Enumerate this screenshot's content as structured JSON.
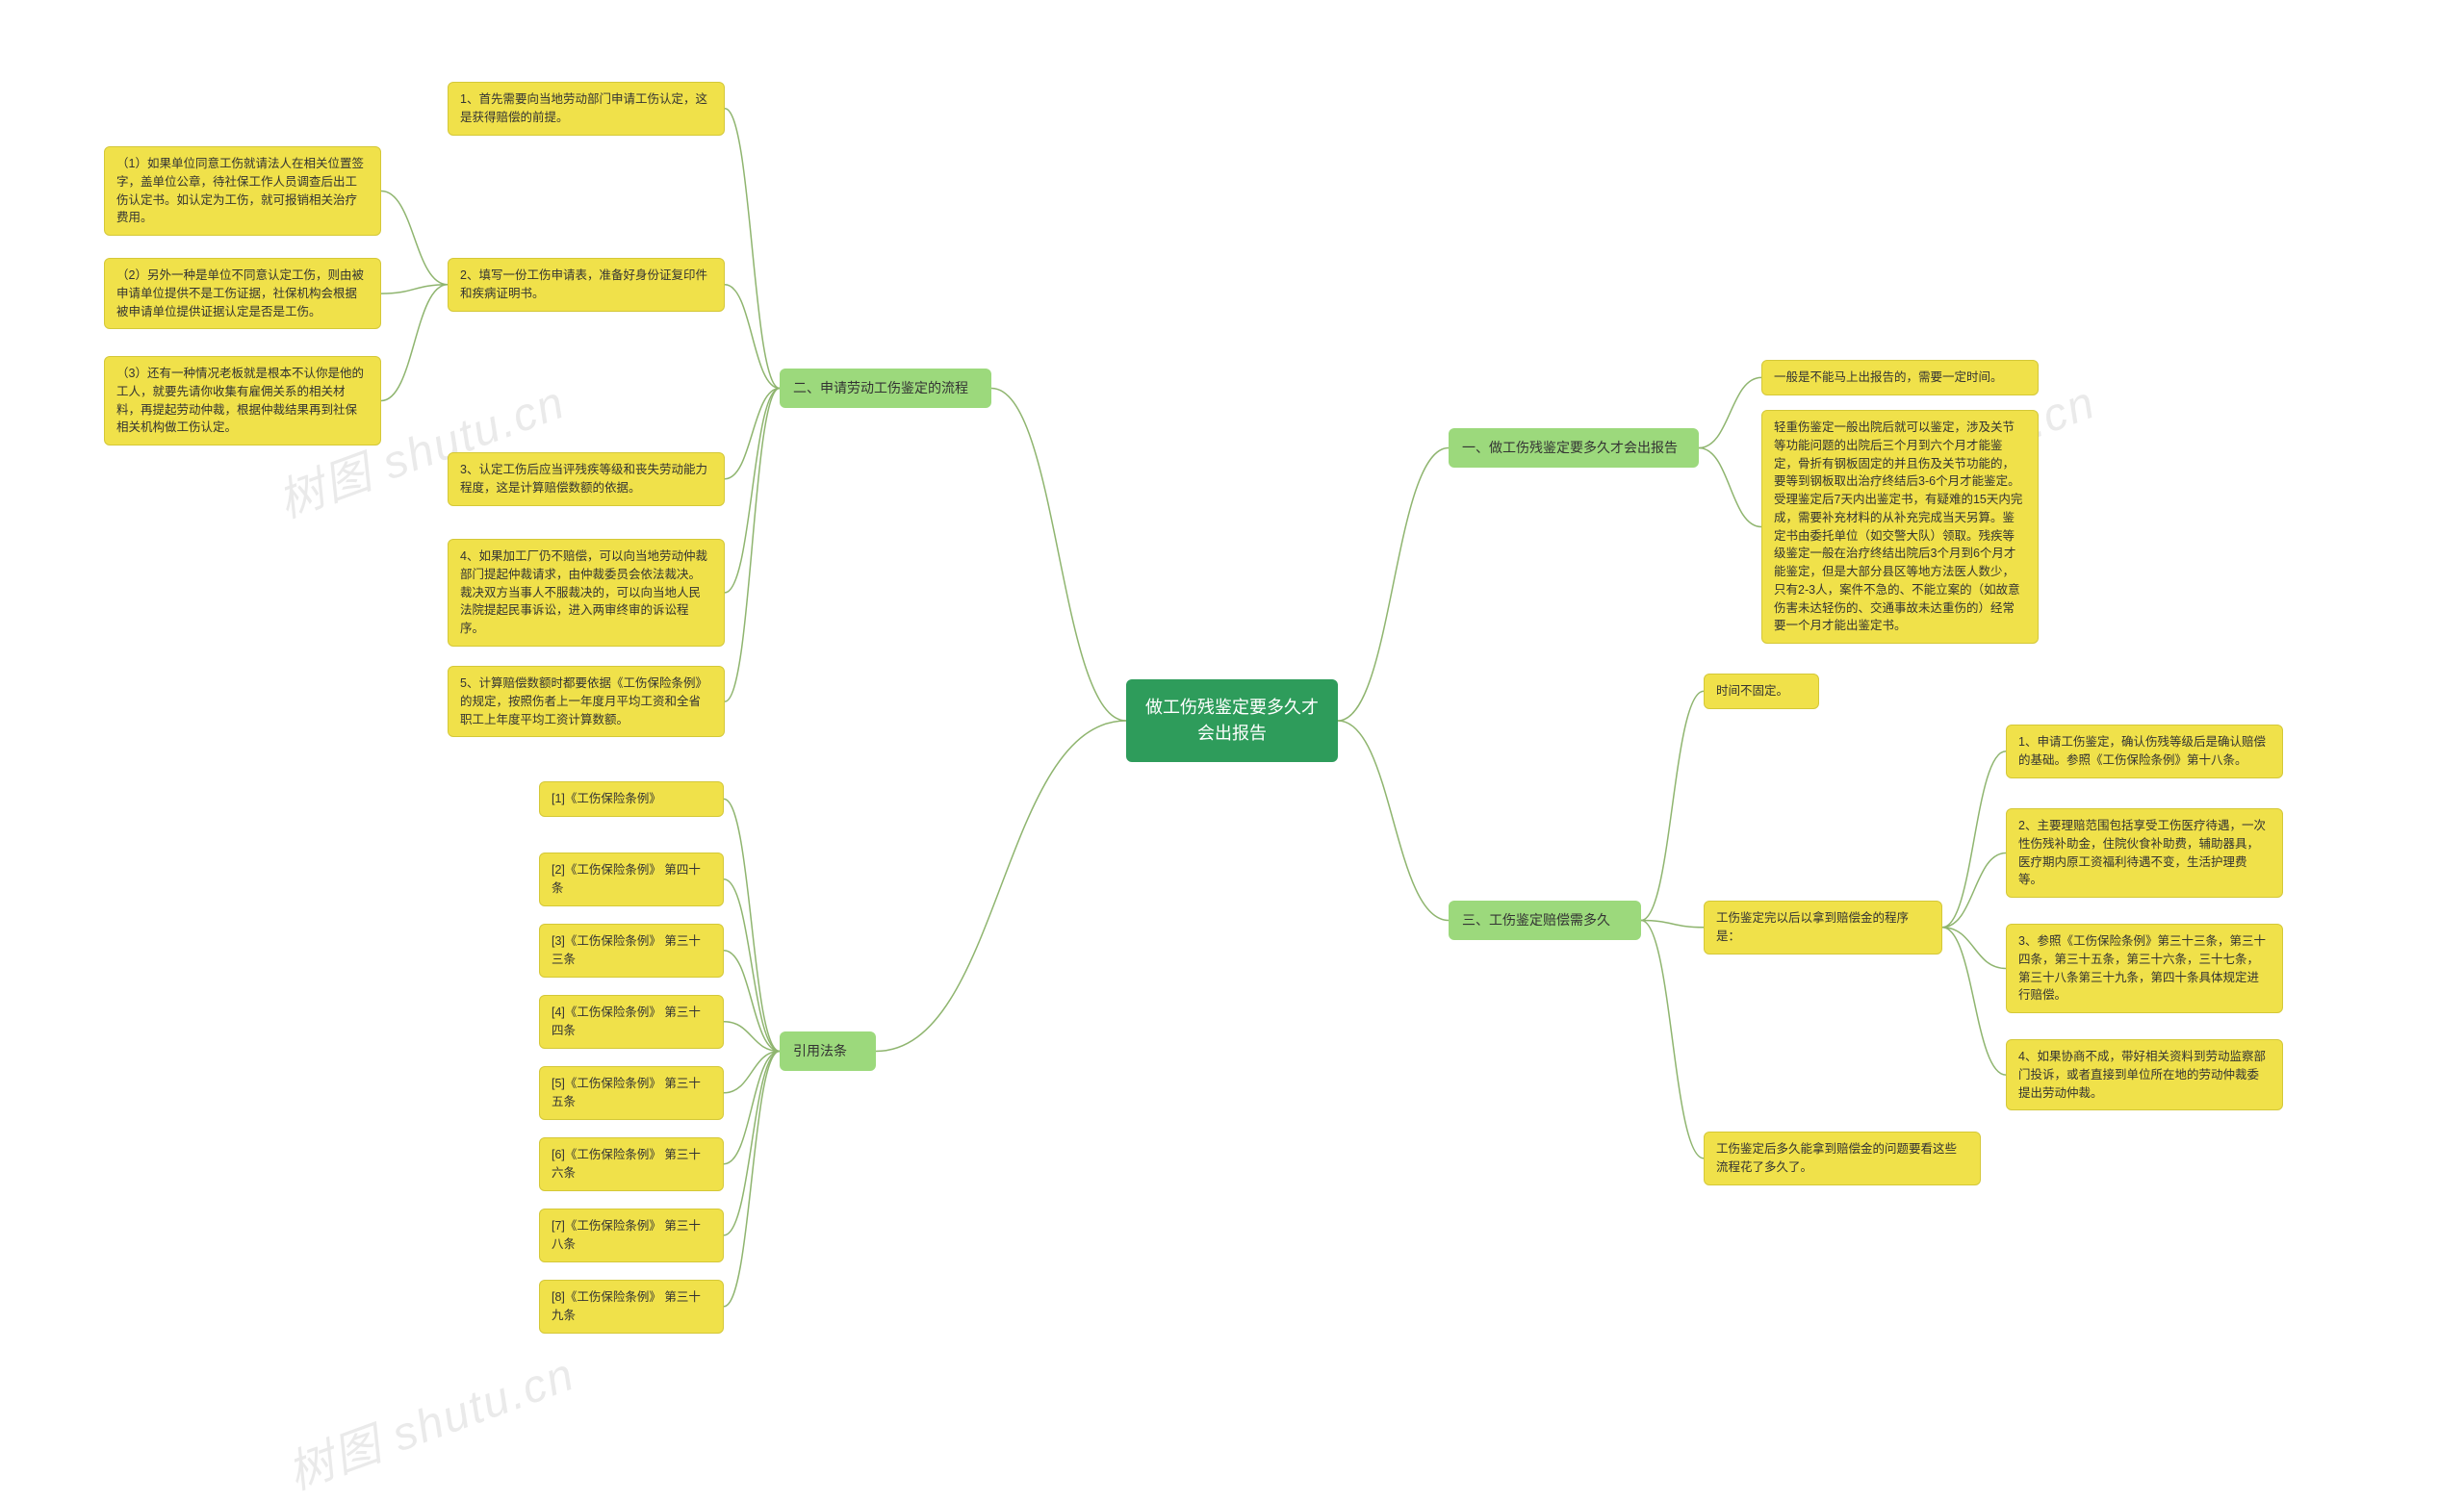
{
  "colors": {
    "root_bg": "#2e9c5b",
    "root_fg": "#ffffff",
    "lvl1_bg": "#9cd97c",
    "lvl2_bg": "#f0e14a",
    "lvl2_border": "#d4c838",
    "connector": "#8fb56f",
    "watermark": "#cccccc"
  },
  "root": {
    "title": "做工伤残鉴定要多久才会出报告"
  },
  "right": {
    "b1": {
      "title": "一、做工伤残鉴定要多久才会出报告",
      "items": [
        "一般是不能马上出报告的，需要一定时间。",
        "轻重伤鉴定一般出院后就可以鉴定，涉及关节等功能问题的出院后三个月到六个月才能鉴定，骨折有钢板固定的并且伤及关节功能的，要等到钢板取出治疗终结后3-6个月才能鉴定。受理鉴定后7天内出鉴定书，有疑难的15天内完成，需要补充材料的从补充完成当天另算。鉴定书由委托单位（如交警大队）领取。残疾等级鉴定一般在治疗终结出院后3个月到6个月才能鉴定，但是大部分县区等地方法医人数少，只有2-3人，案件不急的、不能立案的（如故意伤害未达轻伤的、交通事故未达重伤的）经常要一个月才能出鉴定书。"
      ]
    },
    "b3": {
      "title": "三、工伤鉴定赔偿需多久",
      "items": [
        "时间不固定。",
        "工伤鉴定完以后以拿到赔偿金的程序是：",
        "工伤鉴定后多久能拿到赔偿金的问题要看这些流程花了多久了。"
      ],
      "sub": [
        "1、申请工伤鉴定，确认伤残等级后是确认赔偿的基础。参照《工伤保险条例》第十八条。",
        "2、主要理赔范围包括享受工伤医疗待遇，一次性伤残补助金，住院伙食补助费，辅助器具，医疗期内原工资福利待遇不变，生活护理费等。",
        "3、参照《工伤保险条例》第三十三条，第三十四条，第三十五条，第三十六条，三十七条，第三十八条第三十九条，第四十条具体规定进行赔偿。",
        "4、如果协商不成，带好相关资料到劳动监察部门投诉，或者直接到单位所在地的劳动仲裁委提出劳动仲裁。"
      ]
    }
  },
  "left": {
    "b2": {
      "title": "二、申请劳动工伤鉴定的流程",
      "items": [
        "1、首先需要向当地劳动部门申请工伤认定，这是获得赔偿的前提。",
        "2、填写一份工伤申请表，准备好身份证复印件和疾病证明书。",
        "3、认定工伤后应当评残疾等级和丧失劳动能力程度，这是计算赔偿数额的依据。",
        "4、如果加工厂仍不赔偿，可以向当地劳动仲裁部门提起仲裁请求，由仲裁委员会依法裁决。裁决双方当事人不服裁决的，可以向当地人民法院提起民事诉讼，进入两审终审的诉讼程序。",
        "5、计算赔偿数额时都要依据《工伤保险条例》的规定，按照伤者上一年度月平均工资和全省职工上年度平均工资计算数额。"
      ],
      "sub2": [
        "（1）如果单位同意工伤就请法人在相关位置签字，盖单位公章，待社保工作人员调查后出工伤认定书。如认定为工伤，就可报销相关治疗费用。",
        "（2）另外一种是单位不同意认定工伤，则由被申请单位提供不是工伤证据，社保机构会根据被申请单位提供证据认定是否是工伤。",
        "（3）还有一种情况老板就是根本不认你是他的工人，就要先请你收集有雇佣关系的相关材料，再提起劳动仲裁，根据仲裁结果再到社保相关机构做工伤认定。"
      ]
    },
    "law": {
      "title": "引用法条",
      "items": [
        "[1]《工伤保险条例》",
        "[2]《工伤保险条例》 第四十条",
        "[3]《工伤保险条例》 第三十三条",
        "[4]《工伤保险条例》 第三十四条",
        "[5]《工伤保险条例》 第三十五条",
        "[6]《工伤保险条例》 第三十六条",
        "[7]《工伤保险条例》 第三十八条",
        "[8]《工伤保险条例》 第三十九条"
      ]
    }
  },
  "watermark": "树图 shutu.cn"
}
